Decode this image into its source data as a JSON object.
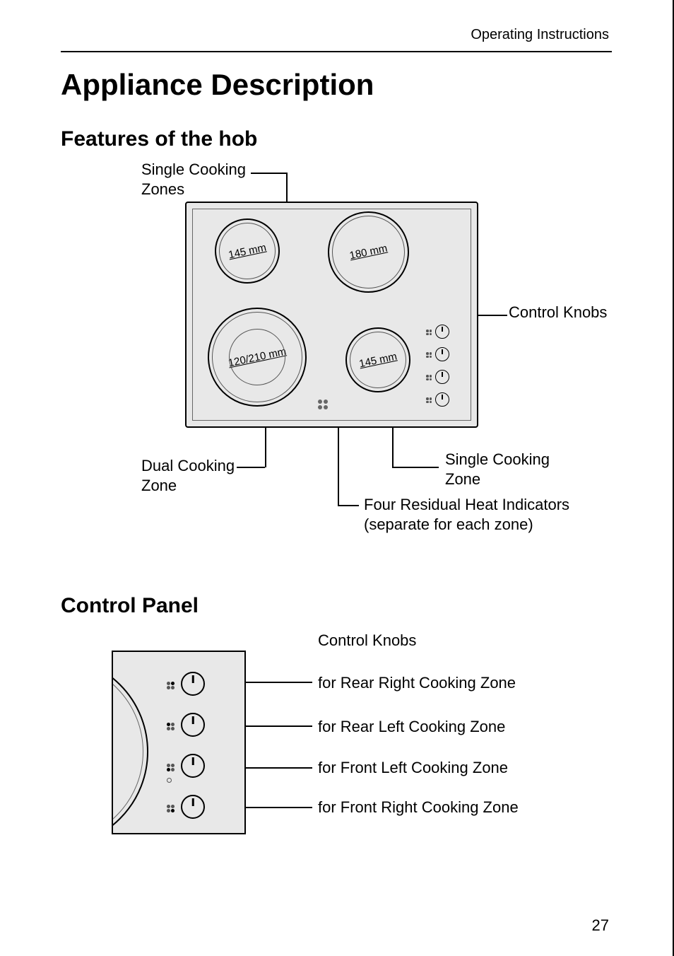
{
  "running_head": "Operating Instructions",
  "title": "Appliance Description",
  "section_features": "Features of the hob",
  "section_panel": "Control Panel",
  "page_number": "27",
  "hob": {
    "label_single_zones": "Single Cooking\nZones",
    "label_control_knobs": "Control Knobs",
    "label_dual_zone": "Dual Cooking\nZone",
    "label_single_zone": "Single Cooking\nZone",
    "label_heat_indicators": "Four Residual Heat Indicators\n(separate for each zone)",
    "zones": {
      "top_left_mm": "145 mm",
      "top_right_mm": "180 mm",
      "bottom_left_mm": "120/210 mm",
      "bottom_right_mm": "145 mm"
    },
    "background_color": "#e8e8e8",
    "border_color": "#000000"
  },
  "panel": {
    "label_control_knobs": "Control Knobs",
    "knobs": [
      {
        "label": "for Rear Right Cooking Zone"
      },
      {
        "label": "for Rear Left Cooking Zone"
      },
      {
        "label": "for Front Left Cooking Zone"
      },
      {
        "label": "for Front Right Cooking Zone"
      }
    ],
    "background_color": "#e8e8e8",
    "border_color": "#000000"
  },
  "typography": {
    "h1_fontsize_pt": 32,
    "h2_fontsize_pt": 22,
    "body_fontsize_pt": 16,
    "font_family": "sans-serif"
  },
  "colors": {
    "page_background": "#ffffff",
    "text": "#000000",
    "diagram_fill": "#e8e8e8",
    "line": "#000000"
  }
}
